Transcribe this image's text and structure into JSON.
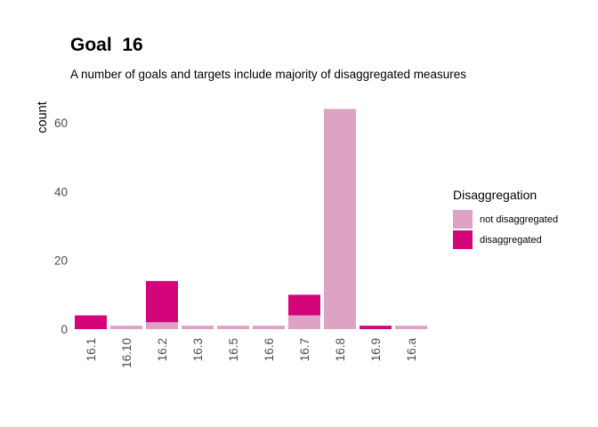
{
  "chart_data": {
    "type": "bar",
    "stacked": true,
    "title": "Goal  16",
    "subtitle": "A number of goals and targets include majority of disaggregated measures",
    "xlabel": "",
    "ylabel": "count",
    "ylim": [
      0,
      67
    ],
    "yticks": [
      0,
      20,
      40,
      60
    ],
    "grid": false,
    "legend_position": "right",
    "legend_title": "Disaggregation",
    "categories": [
      "16.1",
      "16.10",
      "16.2",
      "16.3",
      "16.5",
      "16.6",
      "16.7",
      "16.8",
      "16.9",
      "16.a"
    ],
    "series": [
      {
        "name": "not disaggregated",
        "color": "#dda3c5",
        "values": [
          0,
          1,
          2,
          1,
          1,
          1,
          4,
          64,
          0,
          1
        ]
      },
      {
        "name": "disaggregated",
        "color": "#d4057a",
        "values": [
          4,
          0,
          12,
          0,
          0,
          0,
          6,
          0,
          1,
          0
        ]
      }
    ]
  }
}
